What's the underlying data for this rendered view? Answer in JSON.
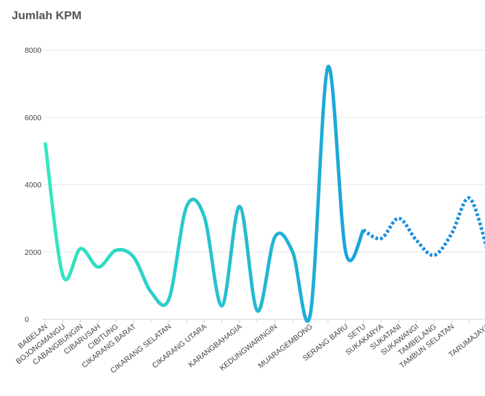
{
  "chart_data": {
    "type": "line",
    "title": "Jumlah KPM",
    "categories": [
      "BABELAN",
      "BOJONGMANGU",
      "CABANGBUNGIN",
      "CIBARUSAH",
      "CIBITUNG",
      "CIKARANG BARAT",
      null,
      "CIKARANG SELATAN",
      null,
      "CIKARANG UTARA",
      null,
      "KARANGBAHAGIA",
      null,
      "KEDUNGWARINGIN",
      null,
      "MUARAGEMBONG",
      null,
      "SERANG BARU",
      "SETU",
      "SUKAKARYA",
      "SUKATANI",
      "SUKAWANGI",
      "TAMBELANG",
      "TAMBUN SELATAN",
      null,
      "TARUMAJAYA"
    ],
    "series": [
      {
        "colors": [
          "#36e8bf",
          "#1aa0dc"
        ],
        "style": "solid",
        "values": [
          5250,
          1300,
          2100,
          1550,
          2050,
          1850,
          800,
          600,
          3350,
          3050,
          400,
          3350,
          250,
          2450,
          2000,
          150,
          7500,
          2000,
          2650,
          null,
          null,
          null,
          null,
          null,
          null,
          null
        ]
      },
      {
        "color": "#1a8fe0",
        "style": "dotted",
        "values": [
          null,
          null,
          null,
          null,
          null,
          null,
          null,
          null,
          null,
          null,
          null,
          null,
          null,
          null,
          null,
          null,
          null,
          null,
          null,
          2400,
          3000,
          2350,
          1900,
          2550,
          3600,
          2100
        ]
      }
    ],
    "ylim": [
      0,
      8000
    ],
    "yticks": [
      0,
      2000,
      4000,
      6000,
      8000
    ],
    "grid": true
  }
}
